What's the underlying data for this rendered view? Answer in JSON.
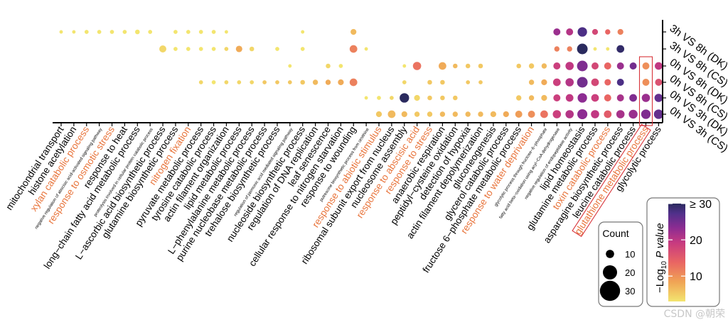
{
  "chart_data": {
    "type": "scatter",
    "subtype": "bubble",
    "rows": [
      "3h VS 8h (DK)",
      "3h VS 8h (CS)",
      "0h VS 8h (DK)",
      "0h VS 8h (CS)",
      "0h VS 3h (DK)",
      "0h VS 3h (CS)"
    ],
    "terms": [
      {
        "label": "mitochondrial transport",
        "color": "#000000"
      },
      {
        "label": "histone acetylation",
        "color": "#000000"
      },
      {
        "label": "xylan catabolic process",
        "color": "#e8743b"
      },
      {
        "label": "negative regulation of abscisic acid-activated signaling pathway",
        "color": "#000000"
      },
      {
        "label": "response to osmotic stress",
        "color": "#e8743b"
      },
      {
        "label": "response to heat",
        "color": "#000000"
      },
      {
        "label": "long−chain fatty acid metabolic process",
        "color": "#000000"
      },
      {
        "label": "proteolysis involved in cellular protein catabolic process",
        "color": "#000000"
      },
      {
        "label": "L−ascorbic acid biosynthetic process",
        "color": "#000000"
      },
      {
        "label": "glutamine biosynthetic process",
        "color": "#000000"
      },
      {
        "label": "nitrogen fixation",
        "color": "#e8743b"
      },
      {
        "label": "pyruvate metabolic process",
        "color": "#000000"
      },
      {
        "label": "tyrosine catabolic process",
        "color": "#000000"
      },
      {
        "label": "actin filament organization",
        "color": "#000000"
      },
      {
        "label": "lipid metabolic process",
        "color": "#000000"
      },
      {
        "label": "L−phenylalanine metabolic process",
        "color": "#000000"
      },
      {
        "label": "purine nucleobase metabolic process",
        "color": "#000000"
      },
      {
        "label": "trehalose biosynthetic process",
        "color": "#000000"
      },
      {
        "label": "regulation of jasmonic acid mediated signaling pathway",
        "color": "#000000"
      },
      {
        "label": "nucleoside biosynthetic process",
        "color": "#000000"
      },
      {
        "label": "regulation of DNA replication",
        "color": "#000000"
      },
      {
        "label": "leaf senescence",
        "color": "#000000"
      },
      {
        "label": "cellular response to nitrogen starvation",
        "color": "#000000"
      },
      {
        "label": "response to wounding",
        "color": "#000000"
      },
      {
        "label": "putrescine biosynthetic process from ornithine",
        "color": "#000000"
      },
      {
        "label": "response to abiotic stimulus",
        "color": "#e8743b"
      },
      {
        "label": "ribosomal subunit export from nucleus",
        "color": "#000000"
      },
      {
        "label": "nucleosome assembly",
        "color": "#000000"
      },
      {
        "label": "response to abscisic acid",
        "color": "#e8743b"
      },
      {
        "label": "response to stress",
        "color": "#e8743b"
      },
      {
        "label": "anaerobic respiration",
        "color": "#000000"
      },
      {
        "label": "peptidyl−cysteine oxidation",
        "color": "#000000"
      },
      {
        "label": "detection of hypoxia",
        "color": "#000000"
      },
      {
        "label": "actin filament depolymerization",
        "color": "#000000"
      },
      {
        "label": "gluconeogenesis",
        "color": "#000000"
      },
      {
        "label": "glycerol catabolic process",
        "color": "#000000"
      },
      {
        "label": "fructose 6−phosphate metabolic process",
        "color": "#000000"
      },
      {
        "label": "response to water deprivation",
        "color": "#e8743b"
      },
      {
        "label": "glycolytic process through fructose−6−phosphate",
        "color": "#000000"
      },
      {
        "label": "fatty acid beta−oxidation using acyl−CoA dehydrogenase",
        "color": "#000000"
      },
      {
        "label": "negative regulation of endopeptidase activity",
        "color": "#000000"
      },
      {
        "label": "lipid homeostasis",
        "color": "#000000"
      },
      {
        "label": "glutamine metabolic process",
        "color": "#000000"
      },
      {
        "label": "toxin catabolic process",
        "color": "#e8743b"
      },
      {
        "label": "asparagine biosynthetic process",
        "color": "#000000"
      },
      {
        "label": "leucine catabolic process",
        "color": "#000000"
      },
      {
        "label": "glutathione metabolic process",
        "color": "#e8743b",
        "boxed": true
      },
      {
        "label": "glycolytic process",
        "color": "#000000"
      }
    ],
    "points": [
      [
        0,
        0,
        2,
        3
      ],
      [
        1,
        0,
        2,
        3
      ],
      [
        2,
        0,
        3,
        3
      ],
      [
        3,
        0,
        3,
        3
      ],
      [
        4,
        0,
        3,
        3
      ],
      [
        5,
        0,
        3,
        3
      ],
      [
        6,
        0,
        4,
        3
      ],
      [
        7,
        0,
        3,
        3
      ],
      [
        9,
        0,
        3,
        3
      ],
      [
        10,
        0,
        3,
        3
      ],
      [
        11,
        0,
        3,
        3
      ],
      [
        12,
        0,
        3,
        3
      ],
      [
        13,
        0,
        2,
        3
      ],
      [
        19,
        0,
        2,
        3
      ],
      [
        23,
        0,
        6,
        6
      ],
      [
        39,
        0,
        8,
        20
      ],
      [
        40,
        0,
        8,
        18
      ],
      [
        41,
        0,
        12,
        26
      ],
      [
        42,
        0,
        6,
        15
      ],
      [
        43,
        0,
        5,
        12
      ],
      [
        44,
        0,
        6,
        10
      ],
      [
        8,
        1,
        8,
        4
      ],
      [
        9,
        1,
        3,
        3
      ],
      [
        10,
        1,
        3,
        3
      ],
      [
        11,
        1,
        3,
        3
      ],
      [
        12,
        1,
        3,
        3
      ],
      [
        13,
        1,
        3,
        4
      ],
      [
        14,
        1,
        7,
        7
      ],
      [
        15,
        1,
        4,
        4
      ],
      [
        17,
        1,
        3,
        3
      ],
      [
        19,
        1,
        3,
        3
      ],
      [
        23,
        1,
        9,
        10
      ],
      [
        24,
        1,
        2,
        3
      ],
      [
        39,
        1,
        5,
        10
      ],
      [
        40,
        1,
        5,
        10
      ],
      [
        41,
        1,
        14,
        30
      ],
      [
        42,
        1,
        2,
        3
      ],
      [
        43,
        1,
        2,
        3
      ],
      [
        44,
        1,
        9,
        29
      ],
      [
        18,
        2,
        2,
        3
      ],
      [
        21,
        2,
        4,
        4
      ],
      [
        22,
        2,
        3,
        3
      ],
      [
        27,
        2,
        2,
        3
      ],
      [
        28,
        2,
        10,
        11
      ],
      [
        30,
        2,
        9,
        7
      ],
      [
        31,
        2,
        4,
        6
      ],
      [
        32,
        2,
        4,
        5
      ],
      [
        33,
        2,
        4,
        5
      ],
      [
        36,
        2,
        4,
        5
      ],
      [
        37,
        2,
        5,
        5
      ],
      [
        38,
        2,
        5,
        6
      ],
      [
        39,
        2,
        8,
        16
      ],
      [
        40,
        2,
        10,
        17
      ],
      [
        41,
        2,
        14,
        22
      ],
      [
        42,
        2,
        8,
        15
      ],
      [
        43,
        2,
        8,
        12
      ],
      [
        44,
        2,
        8,
        20
      ],
      [
        45,
        2,
        8,
        23
      ],
      [
        46,
        2,
        8,
        9
      ],
      [
        47,
        2,
        9,
        17
      ],
      [
        11,
        3,
        3,
        4
      ],
      [
        12,
        3,
        3,
        3
      ],
      [
        13,
        3,
        3,
        4
      ],
      [
        14,
        3,
        3,
        4
      ],
      [
        15,
        3,
        3,
        4
      ],
      [
        16,
        3,
        3,
        5
      ],
      [
        17,
        3,
        3,
        5
      ],
      [
        18,
        3,
        3,
        5
      ],
      [
        19,
        3,
        4,
        5
      ],
      [
        20,
        3,
        5,
        6
      ],
      [
        21,
        3,
        5,
        7
      ],
      [
        22,
        3,
        6,
        7
      ],
      [
        23,
        3,
        9,
        10
      ],
      [
        27,
        3,
        3,
        4
      ],
      [
        29,
        3,
        4,
        5
      ],
      [
        30,
        3,
        4,
        5
      ],
      [
        32,
        3,
        3,
        5
      ],
      [
        33,
        3,
        3,
        5
      ],
      [
        37,
        3,
        5,
        6
      ],
      [
        38,
        3,
        6,
        7
      ],
      [
        39,
        3,
        9,
        16
      ],
      [
        40,
        3,
        10,
        18
      ],
      [
        41,
        3,
        14,
        23
      ],
      [
        42,
        3,
        9,
        15
      ],
      [
        43,
        3,
        7,
        12
      ],
      [
        44,
        3,
        8,
        26
      ],
      [
        46,
        3,
        8,
        9
      ],
      [
        47,
        3,
        8,
        14
      ],
      [
        24,
        4,
        2,
        3
      ],
      [
        25,
        4,
        3,
        3
      ],
      [
        26,
        4,
        3,
        4
      ],
      [
        27,
        4,
        12,
        30
      ],
      [
        28,
        4,
        6,
        4
      ],
      [
        29,
        4,
        4,
        5
      ],
      [
        30,
        4,
        4,
        5
      ],
      [
        31,
        4,
        4,
        5
      ],
      [
        36,
        4,
        5,
        5
      ],
      [
        37,
        4,
        5,
        6
      ],
      [
        38,
        4,
        6,
        6
      ],
      [
        39,
        4,
        8,
        16
      ],
      [
        40,
        4,
        9,
        17
      ],
      [
        41,
        4,
        12,
        21
      ],
      [
        42,
        4,
        9,
        16
      ],
      [
        43,
        4,
        8,
        12
      ],
      [
        44,
        4,
        8,
        19
      ],
      [
        45,
        4,
        9,
        22
      ],
      [
        46,
        4,
        10,
        20
      ],
      [
        47,
        4,
        10,
        24
      ],
      [
        25,
        5,
        6,
        5
      ],
      [
        26,
        5,
        9,
        6
      ],
      [
        27,
        5,
        6,
        6
      ],
      [
        28,
        5,
        5,
        5
      ],
      [
        29,
        5,
        5,
        5
      ],
      [
        30,
        5,
        5,
        6
      ],
      [
        31,
        5,
        5,
        6
      ],
      [
        32,
        5,
        5,
        6
      ],
      [
        33,
        5,
        5,
        6
      ],
      [
        34,
        5,
        6,
        6
      ],
      [
        35,
        5,
        6,
        7
      ],
      [
        36,
        5,
        8,
        8
      ],
      [
        37,
        5,
        8,
        9
      ],
      [
        38,
        5,
        9,
        11
      ],
      [
        39,
        5,
        10,
        16
      ],
      [
        40,
        5,
        10,
        18
      ],
      [
        41,
        5,
        13,
        21
      ],
      [
        42,
        5,
        10,
        17
      ],
      [
        43,
        5,
        9,
        13
      ],
      [
        44,
        5,
        10,
        19
      ],
      [
        45,
        5,
        11,
        20
      ],
      [
        46,
        5,
        12,
        22
      ],
      [
        47,
        5,
        12,
        24
      ]
    ],
    "point_fields": [
      "term_index",
      "row_index",
      "count",
      "neg_log10_p"
    ],
    "size_legend": {
      "title": "Count",
      "values": [
        10,
        20,
        30
      ],
      "labels": [
        "10",
        "20",
        "30"
      ]
    },
    "color_legend": {
      "title_main": "−Log",
      "title_sub": "10",
      "title_tail": " P value",
      "range": [
        3,
        30
      ],
      "ticks": [
        "10",
        "20",
        "≥ 30"
      ],
      "tick_values": [
        10,
        20,
        30
      ],
      "gradient": [
        "#f3e56f",
        "#f0a455",
        "#e96563",
        "#c73a80",
        "#8d2c92",
        "#50308a",
        "#2a2a5e"
      ]
    }
  },
  "watermark": "CSDN @朝荣"
}
